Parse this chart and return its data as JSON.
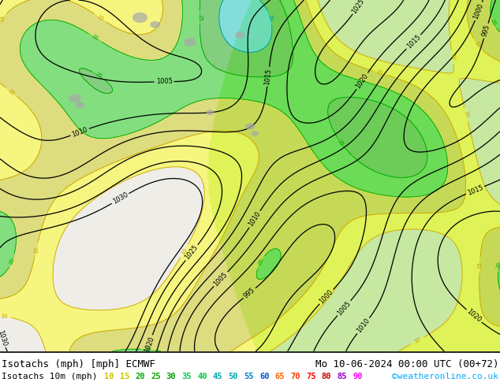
{
  "title_left": "Isotachs (mph) [mph] ECMWF",
  "title_right": "Mo 10-06-2024 00:00 UTC (00+72)",
  "legend_label": "Isotachs 10m (mph)",
  "legend_values": [
    10,
    15,
    20,
    25,
    30,
    35,
    40,
    45,
    50,
    55,
    60,
    65,
    70,
    75,
    80,
    85,
    90
  ],
  "legend_colors": [
    "#c8c800",
    "#c8c800",
    "#00b400",
    "#00b400",
    "#00b400",
    "#00cc00",
    "#00cc00",
    "#00cc00",
    "#00aaaa",
    "#0088cc",
    "#0055cc",
    "#ff6400",
    "#ff3200",
    "#ff0000",
    "#c80000",
    "#9600c8",
    "#ff00ff"
  ],
  "copyright_text": "©weatheronline.co.uk",
  "copyright_color": "#00aaff",
  "bg_color": "#ffffff",
  "land_color_left": "#f0ede8",
  "land_color_right": "#c8e8a0",
  "sea_color": "#c8e8a0",
  "title_color": "#000000",
  "title_fontsize": 9,
  "legend_fontsize": 8,
  "figsize": [
    6.34,
    4.9
  ],
  "dpi": 100
}
